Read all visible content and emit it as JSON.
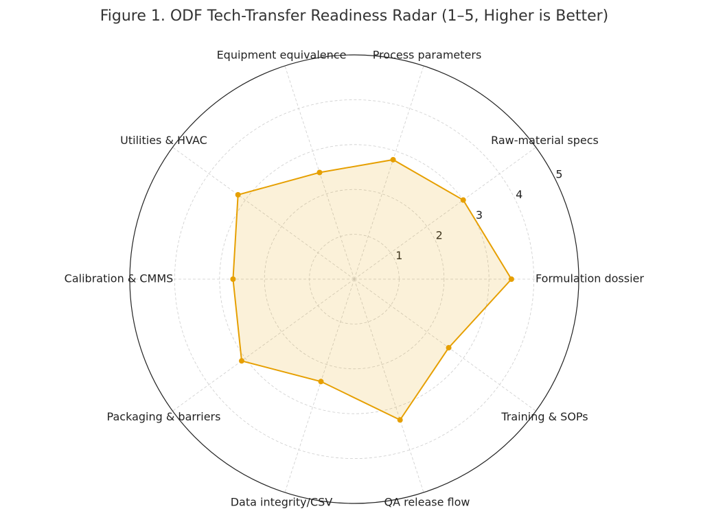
{
  "chart_data": {
    "type": "radar",
    "title": "Figure 1. ODF Tech-Transfer Readiness Radar (1–5, Higher is Better)",
    "categories": [
      "Formulation dossier",
      "Raw-material specs",
      "Process parameters",
      "Equipment equivalence",
      "Utilities & HVAC",
      "Calibration & CMMS",
      "Packaging & barriers",
      "Data integrity/CSV",
      "QA release flow",
      "Training & SOPs"
    ],
    "values": [
      3.5,
      3.0,
      2.8,
      2.5,
      3.2,
      2.7,
      3.1,
      2.4,
      3.3,
      2.6
    ],
    "color": "#e69f00",
    "ylim": [
      0,
      5
    ],
    "yticks": [
      1,
      2,
      3,
      4,
      5
    ],
    "grid": true
  }
}
